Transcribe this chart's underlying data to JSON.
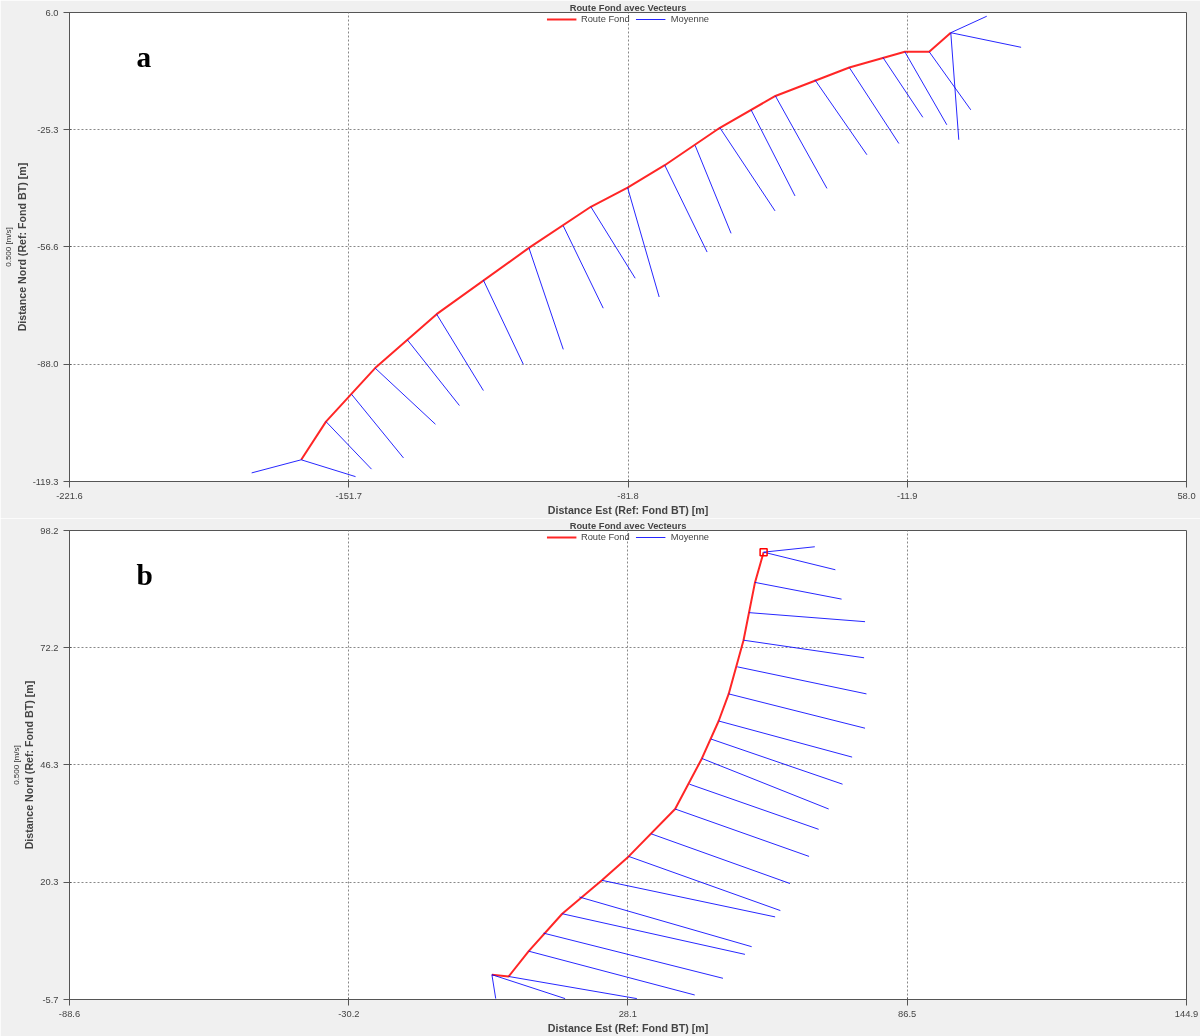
{
  "chart_data": [
    {
      "type": "line",
      "title": "Route Fond avec Vecteurs",
      "xlabel": "Distance Est (Ref: Fond BT) [m]",
      "ylabel": "Distance Nord (Ref: Fond BT) [m]",
      "annotations": [
        "a",
        "0.500 [m/s]"
      ],
      "xlim": [
        -221.6,
        58.0
      ],
      "ylim": [
        -119.3,
        6.0
      ],
      "xticks": [
        -221.6,
        -151.7,
        -81.8,
        -11.9,
        {
          "value": 58.0,
          "label": "58.0"
        }
      ],
      "yticks": [
        -119.3,
        {
          "value": -88.0,
          "label": "-88.0"
        },
        -56.6,
        -25.3,
        {
          "value": 6.0,
          "label": "6.0"
        }
      ],
      "grid": true,
      "legend": "top",
      "series": [
        {
          "name": "Route Fond",
          "color": "#ff0000",
          "x": [
            -163.6,
            -157.4,
            -145.1,
            -129.7,
            -106.6,
            -91.1,
            -81.9,
            -72.6,
            -58.8,
            -44.9,
            -26.4,
            -12.5,
            -6.4,
            -1.0
          ],
          "values": [
            -113.5,
            -103.3,
            -89.0,
            -74.6,
            -56.9,
            -45.9,
            -40.8,
            -34.8,
            -24.8,
            -16.3,
            -8.7,
            -4.5,
            -4.5,
            0.6
          ]
        },
        {
          "name": "Moyenne",
          "color": "#0000ff",
          "x": [
            -163.6,
            -176,
            null,
            -163.6,
            -150,
            null,
            -157.4,
            -146,
            null,
            -151,
            -138,
            null,
            -145.1,
            -130,
            null,
            -137,
            -124,
            null,
            -129.7,
            -118,
            null,
            -118,
            -108,
            null,
            -106.6,
            -98,
            null,
            -98,
            -88,
            null,
            -91.1,
            -80,
            null,
            -81.9,
            -74,
            null,
            -72.6,
            -62,
            null,
            -65,
            -56,
            null,
            -58.8,
            -45,
            null,
            -51,
            -40,
            null,
            -44.9,
            -32,
            null,
            -35,
            -22,
            null,
            -26.4,
            -14,
            null,
            -18,
            -8,
            null,
            -12.5,
            -2,
            null,
            -6.4,
            4,
            null,
            -1.0,
            1,
            null,
            -1.0,
            16.6,
            null,
            -1.0,
            8
          ],
          "values": [
            -113.5,
            -117,
            null,
            -113.5,
            -118,
            null,
            -103.3,
            -116,
            null,
            -96,
            -113,
            null,
            -89.0,
            -104,
            null,
            -81.5,
            -99,
            null,
            -74.6,
            -95,
            null,
            -65.5,
            -88,
            null,
            -56.9,
            -84,
            null,
            -51,
            -73,
            null,
            -45.9,
            -65,
            null,
            -40.8,
            -70,
            null,
            -34.8,
            -58,
            null,
            -29.5,
            -53,
            null,
            -24.8,
            -47,
            null,
            -20,
            -43,
            null,
            -16.3,
            -41,
            null,
            -12,
            -32,
            null,
            -8.7,
            -29,
            null,
            -6,
            -22,
            null,
            -4.5,
            -24,
            null,
            -4.5,
            -20,
            null,
            0.6,
            -28,
            null,
            0.6,
            -3.3,
            null,
            0.6,
            5
          ]
        }
      ]
    },
    {
      "type": "line",
      "title": "Route Fond avec Vecteurs",
      "xlabel": "Distance Est (Ref: Fond BT) [m]",
      "ylabel": "Distance Nord (Ref: Fond BT) [m]",
      "annotations": [
        "b",
        "0.500 [m/s]"
      ],
      "xlim": [
        -88.6,
        144.9
      ],
      "ylim": [
        -5.7,
        98.2
      ],
      "xticks": [
        -88.6,
        -30.2,
        28.1,
        86.5,
        144.9
      ],
      "yticks": [
        -5.7,
        20.3,
        46.3,
        72.2,
        98.2
      ],
      "grid": true,
      "legend": "top",
      "series": [
        {
          "name": "Route Fond",
          "color": "#ff0000",
          "x": [
            -0.3,
            3.2,
            7.4,
            14.4,
            22.7,
            28.3,
            38.0,
            43.6,
            47.1,
            49.2,
            52.3,
            54.7,
            56.5
          ],
          "values": [
            -0.2,
            -0.6,
            5.0,
            13.3,
            20.7,
            26.0,
            36.5,
            47.7,
            56.0,
            62.0,
            73.9,
            86.7,
            93.4
          ]
        },
        {
          "name": "Moyenne",
          "color": "#0000ff",
          "x": [
            56.5,
            67.2,
            null,
            56.5,
            71.5,
            null,
            54.7,
            72.8,
            null,
            53.5,
            77.7,
            null,
            52.3,
            77.5,
            null,
            51,
            78,
            null,
            49.2,
            77.7,
            null,
            47.1,
            75,
            null,
            45.5,
            73,
            null,
            43.6,
            70.1,
            null,
            41,
            68,
            null,
            38.0,
            66,
            null,
            33,
            62,
            null,
            28.3,
            60,
            null,
            22.7,
            58.9,
            null,
            18,
            54,
            null,
            14.4,
            52.6,
            null,
            10.5,
            48,
            null,
            7.4,
            42.1,
            null,
            3.2,
            30,
            null,
            -0.3,
            0.5,
            null,
            -0.3,
            15
          ],
          "values": [
            93.4,
            94.6,
            null,
            93.4,
            89.5,
            null,
            86.7,
            83.0,
            null,
            80,
            78.0,
            null,
            73.9,
            70.0,
            null,
            68,
            62,
            null,
            62.0,
            54.4,
            null,
            56.0,
            48,
            null,
            52,
            42,
            null,
            47.7,
            36.5,
            null,
            42,
            32,
            null,
            36.5,
            26,
            null,
            31,
            20,
            null,
            26.0,
            14,
            null,
            20.7,
            12.6,
            null,
            17,
            6,
            null,
            13.3,
            4.3,
            null,
            9,
            -1,
            null,
            5.0,
            -4.7,
            null,
            -0.6,
            -5.5,
            null,
            -0.2,
            -5.5,
            null,
            -0.2,
            -5.5
          ]
        },
        {
          "type": "scatter",
          "marker": "square",
          "color": "#ff0000",
          "x": [
            56.5
          ],
          "values": [
            93.4
          ]
        }
      ]
    }
  ]
}
